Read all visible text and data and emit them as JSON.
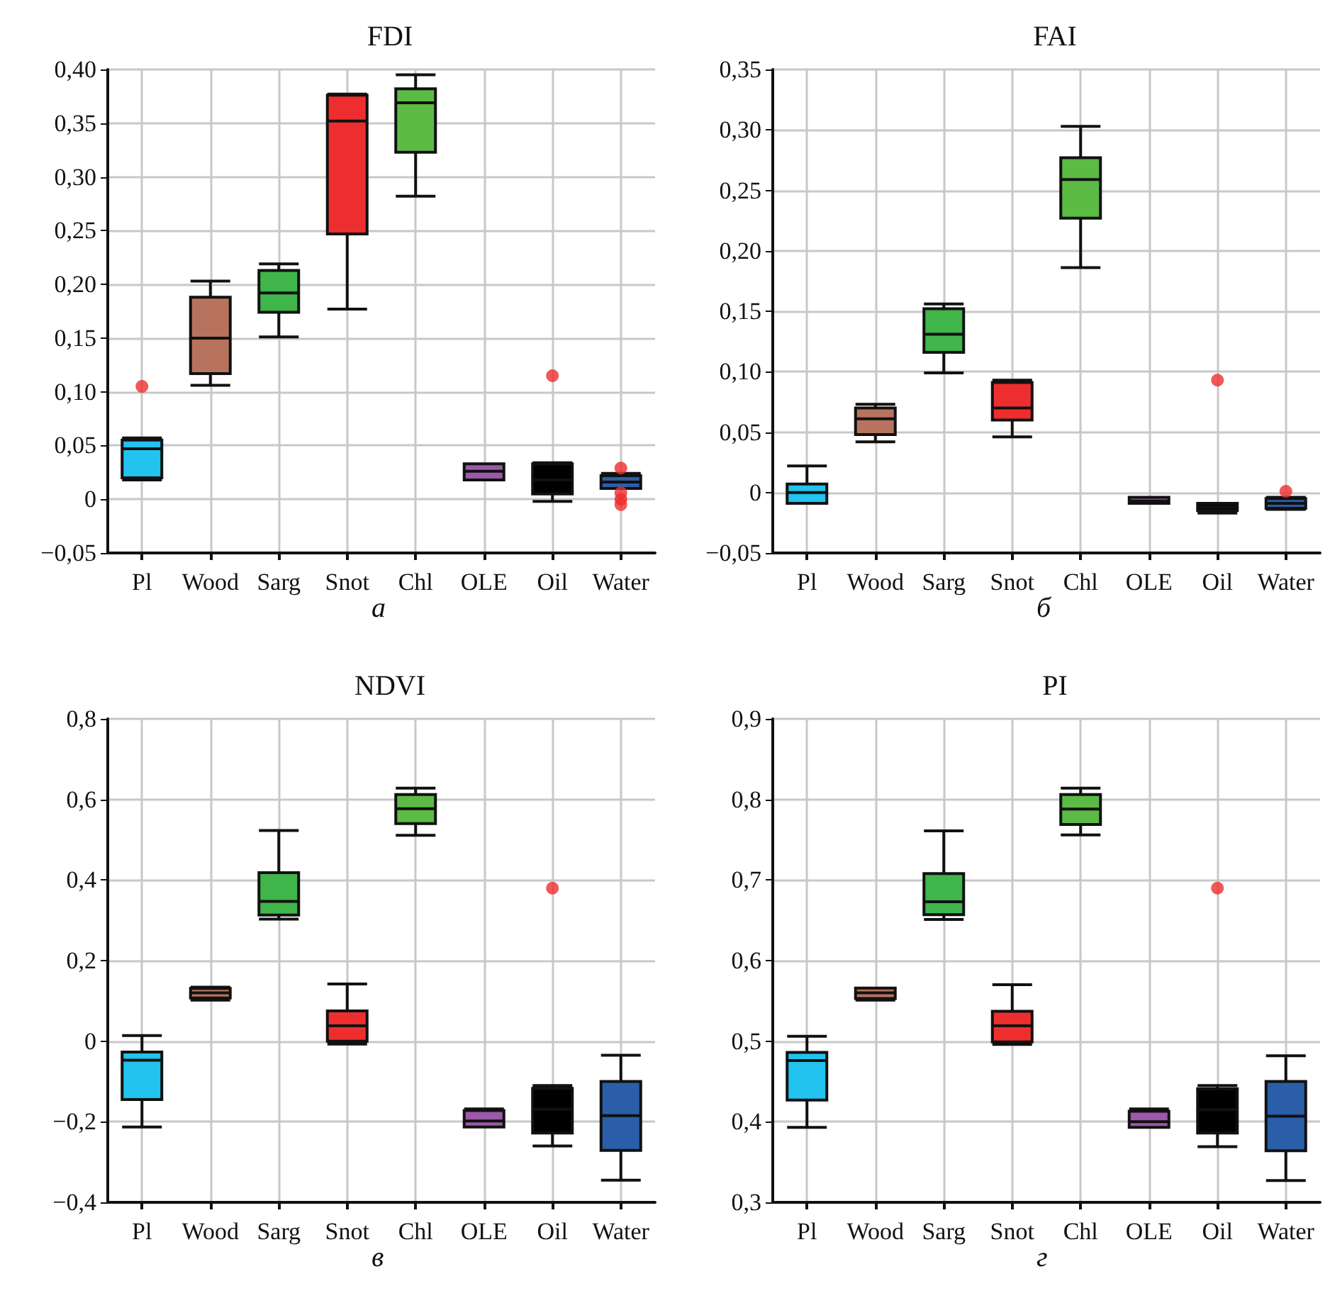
{
  "chart_data": [
    {
      "type": "box",
      "title": "FDI",
      "annotations": [
        "а"
      ],
      "categories": [
        "Pl",
        "Wood",
        "Sarg",
        "Snot",
        "Chl",
        "OLE",
        "Oil",
        "Water"
      ],
      "colors": [
        "#22c3ee",
        "#b8735e",
        "#3fb54a",
        "#ee2e2e",
        "#5bbb45",
        "#9b59a8",
        "#000000",
        "#2a5ea9"
      ],
      "grid": true,
      "ylim": [
        -0.05,
        0.4
      ],
      "yticks": [
        {
          "value": -0.05,
          "label": "−0,05"
        },
        {
          "value": 0,
          "label": "0"
        },
        {
          "value": 0.05,
          "label": "0,05"
        },
        {
          "value": 0.1,
          "label": "0,10"
        },
        {
          "value": 0.15,
          "label": "0,15"
        },
        {
          "value": 0.2,
          "label": "0,20"
        },
        {
          "value": 0.25,
          "label": "0,25"
        },
        {
          "value": 0.3,
          "label": "0,30"
        },
        {
          "value": 0.35,
          "label": "0,35"
        },
        {
          "value": 0.4,
          "label": "0,40"
        }
      ],
      "boxes": [
        {
          "low": 0.018,
          "q1": 0.02,
          "median": 0.047,
          "q3": 0.055,
          "high": 0.057,
          "outliers": [
            0.105
          ]
        },
        {
          "low": 0.106,
          "q1": 0.117,
          "median": 0.15,
          "q3": 0.188,
          "high": 0.203
        },
        {
          "low": 0.151,
          "q1": 0.174,
          "median": 0.192,
          "q3": 0.213,
          "high": 0.219
        },
        {
          "low": 0.177,
          "q1": 0.247,
          "median": 0.352,
          "q3": 0.376,
          "high": 0.377
        },
        {
          "low": 0.282,
          "q1": 0.323,
          "median": 0.369,
          "q3": 0.382,
          "high": 0.395
        },
        {
          "low": 0.018,
          "q1": 0.018,
          "median": 0.026,
          "q3": 0.033,
          "high": 0.033
        },
        {
          "low": -0.002,
          "q1": 0.005,
          "median": 0.018,
          "q3": 0.033,
          "high": 0.034,
          "outliers": [
            0.115
          ]
        },
        {
          "low": 0.01,
          "q1": 0.01,
          "median": 0.016,
          "q3": 0.022,
          "high": 0.024,
          "outliers": [
            0.029,
            0.006,
            0.0,
            -0.005
          ]
        }
      ]
    },
    {
      "type": "box",
      "title": "FAI",
      "annotations": [
        "б"
      ],
      "categories": [
        "Pl",
        "Wood",
        "Sarg",
        "Snot",
        "Chl",
        "OLE",
        "Oil",
        "Water"
      ],
      "colors": [
        "#22c3ee",
        "#b8735e",
        "#3fb54a",
        "#ee2e2e",
        "#5bbb45",
        "#9b59a8",
        "#000000",
        "#2a5ea9"
      ],
      "grid": true,
      "ylim": [
        -0.05,
        0.35
      ],
      "yticks": [
        {
          "value": -0.05,
          "label": "−0,05"
        },
        {
          "value": 0,
          "label": "0"
        },
        {
          "value": 0.05,
          "label": "0,05"
        },
        {
          "value": 0.1,
          "label": "0,10"
        },
        {
          "value": 0.15,
          "label": "0,15"
        },
        {
          "value": 0.2,
          "label": "0,20"
        },
        {
          "value": 0.25,
          "label": "0,25"
        },
        {
          "value": 0.3,
          "label": "0,30"
        },
        {
          "value": 0.35,
          "label": "0,35"
        }
      ],
      "boxes": [
        {
          "low": -0.009,
          "q1": -0.009,
          "median": 0.0,
          "q3": 0.007,
          "high": 0.022
        },
        {
          "low": 0.042,
          "q1": 0.048,
          "median": 0.061,
          "q3": 0.07,
          "high": 0.073
        },
        {
          "low": 0.099,
          "q1": 0.116,
          "median": 0.131,
          "q3": 0.152,
          "high": 0.156
        },
        {
          "low": 0.046,
          "q1": 0.06,
          "median": 0.07,
          "q3": 0.091,
          "high": 0.093
        },
        {
          "low": 0.186,
          "q1": 0.227,
          "median": 0.259,
          "q3": 0.277,
          "high": 0.303
        },
        {
          "low": -0.009,
          "q1": -0.009,
          "median": -0.007,
          "q3": -0.004,
          "high": -0.004
        },
        {
          "low": -0.017,
          "q1": -0.015,
          "median": -0.012,
          "q3": -0.009,
          "high": -0.009,
          "outliers": [
            0.093
          ]
        },
        {
          "low": -0.014,
          "q1": -0.013,
          "median": -0.009,
          "q3": -0.005,
          "high": -0.004,
          "outliers": [
            0.001
          ]
        }
      ]
    },
    {
      "type": "box",
      "title": "NDVI",
      "annotations": [
        "в"
      ],
      "categories": [
        "Pl",
        "Wood",
        "Sarg",
        "Snot",
        "Chl",
        "OLE",
        "Oil",
        "Water"
      ],
      "colors": [
        "#22c3ee",
        "#b8735e",
        "#3fb54a",
        "#ee2e2e",
        "#5bbb45",
        "#9b59a8",
        "#000000",
        "#2a5ea9"
      ],
      "grid": true,
      "ylim": [
        -0.4,
        0.8
      ],
      "yticks": [
        {
          "value": -0.4,
          "label": "−0,4"
        },
        {
          "value": -0.2,
          "label": "−0,2"
        },
        {
          "value": 0,
          "label": "0"
        },
        {
          "value": 0.2,
          "label": "0,2"
        },
        {
          "value": 0.4,
          "label": "0,4"
        },
        {
          "value": 0.6,
          "label": "0,6"
        },
        {
          "value": 0.8,
          "label": "0,8"
        }
      ],
      "boxes": [
        {
          "low": -0.213,
          "q1": -0.145,
          "median": -0.047,
          "q3": -0.027,
          "high": 0.014
        },
        {
          "low": 0.102,
          "q1": 0.107,
          "median": 0.12,
          "q3": 0.131,
          "high": 0.134
        },
        {
          "low": 0.303,
          "q1": 0.313,
          "median": 0.347,
          "q3": 0.418,
          "high": 0.523
        },
        {
          "low": -0.007,
          "q1": 0.0,
          "median": 0.038,
          "q3": 0.075,
          "high": 0.142
        },
        {
          "low": 0.511,
          "q1": 0.54,
          "median": 0.577,
          "q3": 0.612,
          "high": 0.628
        },
        {
          "low": -0.213,
          "q1": -0.213,
          "median": -0.198,
          "q3": -0.172,
          "high": -0.168
        },
        {
          "low": -0.26,
          "q1": -0.228,
          "median": -0.169,
          "q3": -0.117,
          "high": -0.11,
          "outliers": [
            0.38
          ]
        },
        {
          "low": -0.345,
          "q1": -0.271,
          "median": -0.185,
          "q3": -0.1,
          "high": -0.035
        }
      ]
    },
    {
      "type": "box",
      "title": "PI",
      "annotations": [
        "г"
      ],
      "categories": [
        "Pl",
        "Wood",
        "Sarg",
        "Snot",
        "Chl",
        "OLE",
        "Oil",
        "Water"
      ],
      "colors": [
        "#22c3ee",
        "#b8735e",
        "#3fb54a",
        "#ee2e2e",
        "#5bbb45",
        "#9b59a8",
        "#000000",
        "#2a5ea9"
      ],
      "grid": true,
      "ylim": [
        0.3,
        0.9
      ],
      "yticks": [
        {
          "value": 0.3,
          "label": "0,3"
        },
        {
          "value": 0.4,
          "label": "0,4"
        },
        {
          "value": 0.5,
          "label": "0,5"
        },
        {
          "value": 0.6,
          "label": "0,6"
        },
        {
          "value": 0.7,
          "label": "0,7"
        },
        {
          "value": 0.8,
          "label": "0,8"
        },
        {
          "value": 0.9,
          "label": "0,9"
        }
      ],
      "boxes": [
        {
          "low": 0.393,
          "q1": 0.427,
          "median": 0.476,
          "q3": 0.486,
          "high": 0.506
        },
        {
          "low": 0.551,
          "q1": 0.553,
          "median": 0.56,
          "q3": 0.566,
          "high": 0.566
        },
        {
          "low": 0.651,
          "q1": 0.657,
          "median": 0.673,
          "q3": 0.708,
          "high": 0.761
        },
        {
          "low": 0.496,
          "q1": 0.499,
          "median": 0.519,
          "q3": 0.537,
          "high": 0.57
        },
        {
          "low": 0.756,
          "q1": 0.769,
          "median": 0.788,
          "q3": 0.806,
          "high": 0.814
        },
        {
          "low": 0.393,
          "q1": 0.393,
          "median": 0.4,
          "q3": 0.413,
          "high": 0.416
        },
        {
          "low": 0.369,
          "q1": 0.386,
          "median": 0.415,
          "q3": 0.441,
          "high": 0.445,
          "outliers": [
            0.69
          ]
        },
        {
          "low": 0.327,
          "q1": 0.364,
          "median": 0.407,
          "q3": 0.45,
          "high": 0.482
        }
      ]
    }
  ]
}
